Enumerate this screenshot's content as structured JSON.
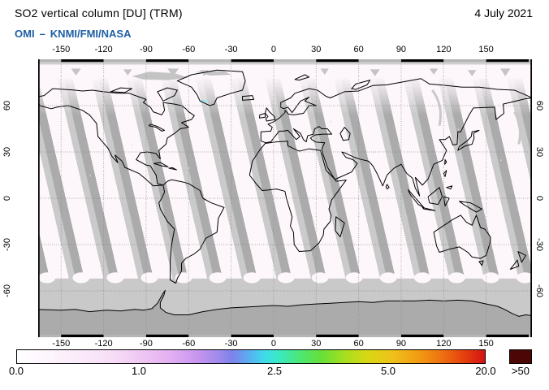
{
  "header": {
    "title": "SO2 vertical column [DU] (TRM)",
    "date": "4 July 2021",
    "instrument": "OMI",
    "separator": "–",
    "agencies": "KNMI/FMI/NASA"
  },
  "map": {
    "lon_ticks": [
      "-150",
      "-120",
      "-90",
      "-60",
      "-30",
      "0",
      "30",
      "60",
      "90",
      "120",
      "150"
    ],
    "lat_ticks": [
      "60",
      "30",
      "0",
      "-30",
      "-60"
    ]
  },
  "colorbar": {
    "unit_labels": [
      "0.0",
      "1.0",
      "2.5",
      "5.0",
      "20.0"
    ],
    "overflow_label": ">50",
    "overflow_color": "#4d0606",
    "gradient_stops": [
      [
        "0%",
        "#ffffff"
      ],
      [
        "10%",
        "#fcf0fb"
      ],
      [
        "20%",
        "#f7dff7"
      ],
      [
        "26%",
        "#f0c9f3"
      ],
      [
        "33%",
        "#e2aff2"
      ],
      [
        "39%",
        "#c493ee"
      ],
      [
        "43%",
        "#a08bec"
      ],
      [
        "46%",
        "#7e82e9"
      ],
      [
        "50%",
        "#54b4f0"
      ],
      [
        "53%",
        "#3fdde9"
      ],
      [
        "56%",
        "#3be9c4"
      ],
      [
        "60%",
        "#49e87c"
      ],
      [
        "65%",
        "#66df38"
      ],
      [
        "70%",
        "#a6df1f"
      ],
      [
        "75%",
        "#d8d714"
      ],
      [
        "80%",
        "#eec31a"
      ],
      [
        "86%",
        "#f29a12"
      ],
      [
        "91%",
        "#ee6f10"
      ],
      [
        "96%",
        "#e43b0e"
      ],
      [
        "100%",
        "#d31414"
      ]
    ]
  },
  "colors": {
    "subtitle": "#1f5fa6",
    "swath_gap": "#cacaca",
    "row_anomaly": "#ababab",
    "polar_no_data": "#c9c9c9",
    "antarctica_fill": "#ababab",
    "frame_gray": "#b4b4b4"
  },
  "chart_data": {
    "type": "heatmap",
    "title": "SO2 vertical column [DU] (TRM)",
    "date": "4 July 2021",
    "source": "OMI – KNMI/FMI/NASA",
    "units": "DU",
    "colorbar_ticks": [
      0.0,
      1.0,
      2.5,
      5.0,
      20.0
    ],
    "overflow_threshold": ">50",
    "lon_axis_ticks": [
      -150,
      -120,
      -90,
      -60,
      -30,
      0,
      30,
      60,
      90,
      120,
      150
    ],
    "lat_axis_ticks": [
      60,
      30,
      0,
      -30,
      -60
    ],
    "description": "Daily global OMI swath composite; SO2 near 0 DU (white to pale pink) over nearly all swaths; tilted gray bands are inter-swath gaps and row-anomaly missing data; gray region south of ~55S is polar night no-data; Antarctica filled gray."
  }
}
